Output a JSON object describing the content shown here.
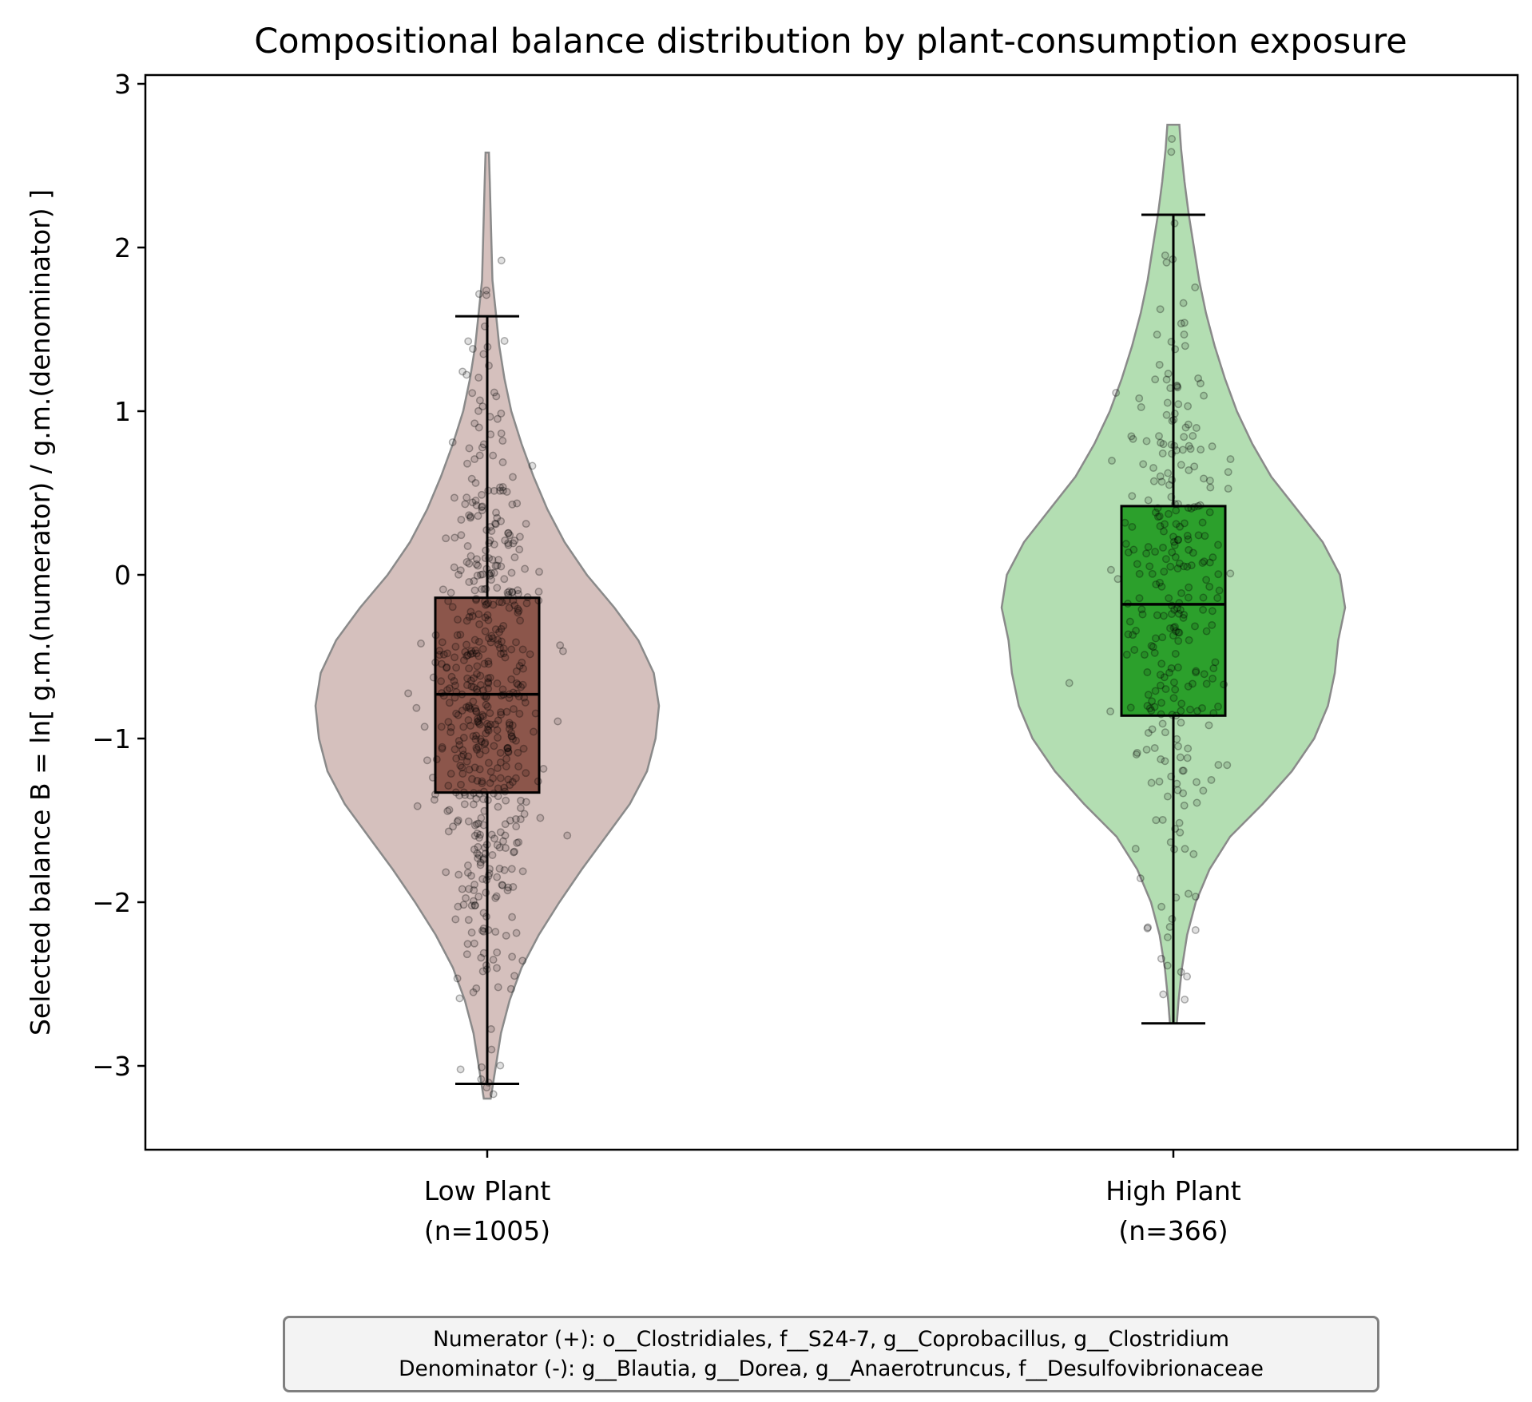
{
  "chart_data": {
    "type": "violin",
    "title": "Compositional balance distribution by plant-consumption exposure",
    "ylabel": "Selected balance  B = ln[ g.m.(numerator) / g.m.(denominator) ]",
    "xlabel": "",
    "ylim": [
      -3.5,
      3.05
    ],
    "yticks": [
      -3,
      -2,
      -1,
      0,
      1,
      2,
      3
    ],
    "ytick_labels": [
      "−3",
      "−2",
      "−1",
      "0",
      "1",
      "2",
      "3"
    ],
    "grid": false,
    "groups": [
      {
        "name": "Low Plant",
        "tick_label_line1": "Low Plant",
        "tick_label_line2": "(n=1005)",
        "n": 1005,
        "fill_color": "#d5c0bd",
        "box_color": "#8c564b",
        "box": {
          "whisker_low": -3.11,
          "q1": -1.33,
          "median": -0.73,
          "q3": -0.14,
          "whisker_high": 1.58
        },
        "violin": {
          "y_min": -3.2,
          "y_max": 2.58,
          "density_profile": [
            [
              -3.2,
              0.02
            ],
            [
              -3.0,
              0.05
            ],
            [
              -2.8,
              0.08
            ],
            [
              -2.6,
              0.13
            ],
            [
              -2.4,
              0.2
            ],
            [
              -2.2,
              0.3
            ],
            [
              -2.0,
              0.42
            ],
            [
              -1.8,
              0.55
            ],
            [
              -1.6,
              0.69
            ],
            [
              -1.4,
              0.83
            ],
            [
              -1.2,
              0.93
            ],
            [
              -1.0,
              0.98
            ],
            [
              -0.8,
              1.0
            ],
            [
              -0.6,
              0.97
            ],
            [
              -0.4,
              0.88
            ],
            [
              -0.2,
              0.74
            ],
            [
              0.0,
              0.58
            ],
            [
              0.2,
              0.45
            ],
            [
              0.4,
              0.35
            ],
            [
              0.6,
              0.27
            ],
            [
              0.8,
              0.2
            ],
            [
              1.0,
              0.14
            ],
            [
              1.2,
              0.1
            ],
            [
              1.4,
              0.07
            ],
            [
              1.6,
              0.05
            ],
            [
              1.8,
              0.03
            ],
            [
              2.0,
              0.025
            ],
            [
              2.2,
              0.02
            ],
            [
              2.4,
              0.015
            ],
            [
              2.58,
              0.01
            ]
          ]
        }
      },
      {
        "name": "High Plant",
        "tick_label_line1": "High Plant",
        "tick_label_line2": "(n=366)",
        "n": 366,
        "fill_color": "#b3deb2",
        "box_color": "#2ca02c",
        "box": {
          "whisker_low": -2.74,
          "q1": -0.86,
          "median": -0.18,
          "q3": 0.42,
          "whisker_high": 2.2
        },
        "violin": {
          "y_min": -2.74,
          "y_max": 2.75,
          "density_profile": [
            [
              -2.74,
              0.02
            ],
            [
              -2.6,
              0.03
            ],
            [
              -2.4,
              0.05
            ],
            [
              -2.2,
              0.08
            ],
            [
              -2.0,
              0.13
            ],
            [
              -1.8,
              0.21
            ],
            [
              -1.6,
              0.33
            ],
            [
              -1.4,
              0.52
            ],
            [
              -1.2,
              0.69
            ],
            [
              -1.0,
              0.82
            ],
            [
              -0.8,
              0.9
            ],
            [
              -0.6,
              0.94
            ],
            [
              -0.4,
              0.96
            ],
            [
              -0.2,
              1.0
            ],
            [
              0.0,
              0.97
            ],
            [
              0.2,
              0.87
            ],
            [
              0.4,
              0.72
            ],
            [
              0.6,
              0.57
            ],
            [
              0.8,
              0.46
            ],
            [
              1.0,
              0.37
            ],
            [
              1.2,
              0.3
            ],
            [
              1.4,
              0.24
            ],
            [
              1.6,
              0.19
            ],
            [
              1.8,
              0.15
            ],
            [
              2.0,
              0.12
            ],
            [
              2.2,
              0.09
            ],
            [
              2.4,
              0.065
            ],
            [
              2.6,
              0.045
            ],
            [
              2.75,
              0.035
            ]
          ]
        }
      }
    ],
    "points": {
      "color": "#000000",
      "alpha": 0.25,
      "style": "jittered strip"
    }
  },
  "footnote": {
    "line1": "Numerator (+): o__Clostridiales, f__S24-7, g__Coprobacillus, g__Clostridium",
    "line2": "Denominator (-): g__Blautia, g__Dorea, g__Anaerotruncus, f__Desulfovibrionaceae"
  }
}
